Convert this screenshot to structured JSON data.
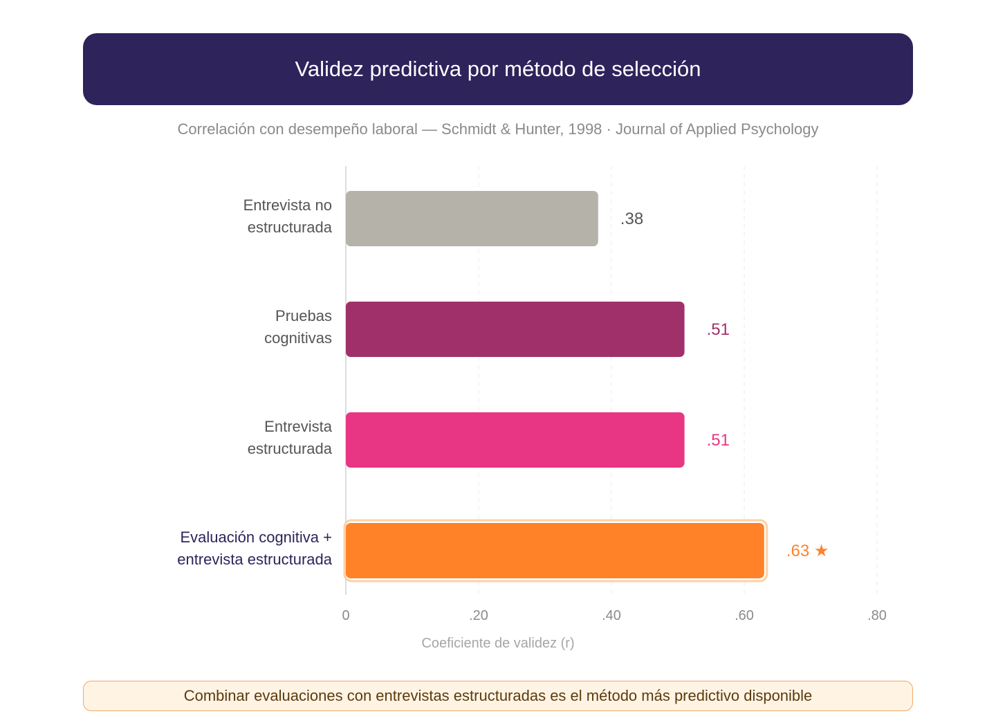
{
  "header": {
    "title": "Validez predictiva por método de selección",
    "subtitle": "Correlación con desempeño laboral — Schmidt & Hunter, 1998 · Journal of Applied Psychology"
  },
  "chart_data": {
    "type": "bar",
    "orientation": "horizontal",
    "title": "Validez predictiva por método de selección",
    "subtitle": "Correlación con desempeño laboral — Schmidt & Hunter, 1998 · Journal of Applied Psychology",
    "xlabel": "Coeficiente de validez (r)",
    "ylabel": "",
    "xlim": [
      0,
      0.8
    ],
    "xticks": [
      0,
      0.2,
      0.4,
      0.6,
      0.8
    ],
    "xtick_labels": [
      "0",
      ".20",
      ".40",
      ".60",
      ".80"
    ],
    "grid": "vertical-dashed",
    "categories": [
      [
        "Entrevista no",
        "estructurada"
      ],
      [
        "Pruebas",
        "cognitivas"
      ],
      [
        "Entrevista",
        "estructurada"
      ],
      [
        "Evaluación cognitiva +",
        "entrevista estructurada"
      ]
    ],
    "values": [
      0.38,
      0.51,
      0.51,
      0.63
    ],
    "value_labels": [
      ".38",
      ".51",
      ".51",
      ".63 ★"
    ],
    "colors": [
      "#b5b2aa",
      "#a0306a",
      "#e83584",
      "#ff8228"
    ],
    "label_colors": [
      "#555555",
      "#a0306a",
      "#e83584",
      "#ff8228"
    ],
    "category_label_colors": [
      "#555555",
      "#555555",
      "#555555",
      "#2e235b"
    ],
    "highlight_index": 3,
    "highlight_outline_color": "#ffd0a3"
  },
  "footer": {
    "note": "Combinar evaluaciones con entrevistas estructuradas es el método más predictivo disponible"
  }
}
